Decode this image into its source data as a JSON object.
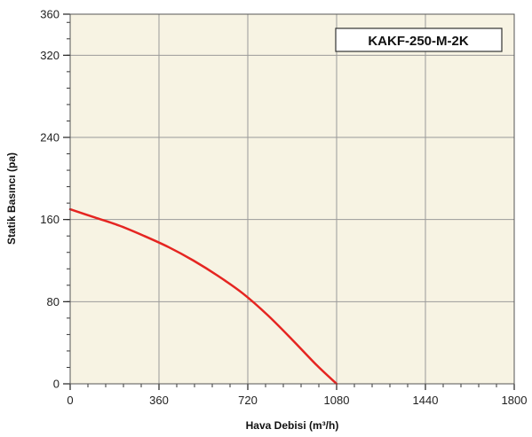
{
  "chart_data": {
    "type": "line",
    "title": "",
    "xlabel": "Hava Debisi (m³/h)",
    "ylabel": "Statik Basıncı (pa)",
    "xlim": [
      0,
      1800
    ],
    "ylim": [
      0,
      360
    ],
    "x_ticks": [
      "0",
      "360",
      "720",
      "1080",
      "1440",
      "1800"
    ],
    "y_ticks": [
      "0",
      "80",
      "160",
      "240",
      "320",
      "360"
    ],
    "grid": true,
    "legend_placement": "top-right",
    "colors": {
      "plot_background": "#f7f3e3",
      "series": "#e52521",
      "grid": "#9a9a9a"
    },
    "series": [
      {
        "name": "KAKF-250-M-2K",
        "x": [
          0,
          100,
          200,
          300,
          400,
          500,
          600,
          700,
          800,
          900,
          1000,
          1080
        ],
        "y": [
          170,
          162,
          154,
          144,
          133,
          120,
          105,
          88,
          67,
          43,
          18,
          0
        ]
      }
    ]
  }
}
